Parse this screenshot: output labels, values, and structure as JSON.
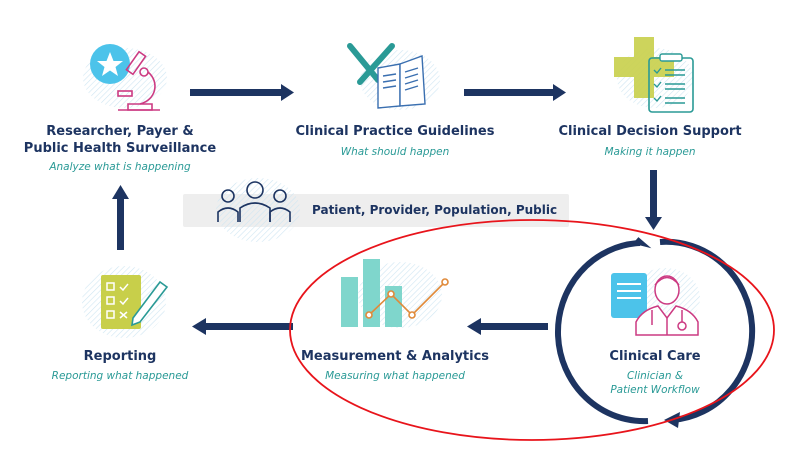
{
  "nodes": {
    "research": {
      "title_line1": "Researcher, Payer &",
      "title_line2": "Public Health Surveillance",
      "subtitle": "Analyze what is happening",
      "icon": "microscope-star-icon"
    },
    "guidelines": {
      "title": "Clinical Practice Guidelines",
      "subtitle": "What should happen",
      "icon": "tools-book-icon"
    },
    "decision_support": {
      "title": "Clinical Decision Support",
      "subtitle": "Making it happen",
      "icon": "medical-cross-clipboard-icon"
    },
    "clinical_care": {
      "title": "Clinical Care",
      "subtitle_line1": "Clinician &",
      "subtitle_line2": "Patient Workflow",
      "icon": "doctor-document-icon"
    },
    "measurement": {
      "title": "Measurement & Analytics",
      "subtitle": "Measuring what happened",
      "icon": "bar-line-chart-icon"
    },
    "reporting": {
      "title": "Reporting",
      "subtitle": "Reporting what happened",
      "icon": "checklist-pencil-icon"
    }
  },
  "stakeholders": {
    "label": "Patient, Provider, Population, Public",
    "icon": "people-group-icon"
  },
  "colors": {
    "navy": "#1d3461",
    "teal": "#2a9a96",
    "annotation_red": "#e8141b",
    "lime": "#c8cf4a",
    "sky": "#4cc3ea",
    "magenta": "#cc3a82",
    "mint": "#7fd6cc",
    "orange": "#e08a3a"
  }
}
